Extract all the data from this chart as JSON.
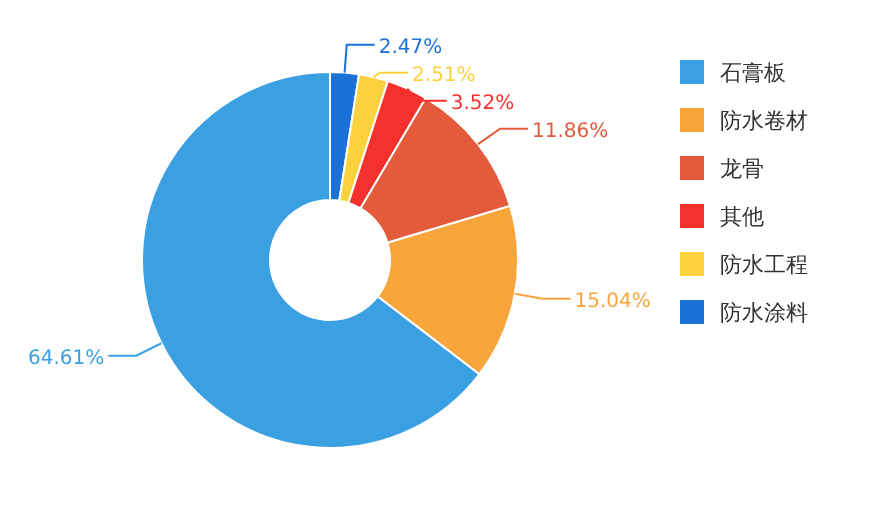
{
  "chart_data": {
    "type": "donut",
    "categories": [
      "石膏板",
      "防水卷材",
      "龙骨",
      "其他",
      "防水工程",
      "防水涂料"
    ],
    "values": [
      64.61,
      15.04,
      11.86,
      3.52,
      2.51,
      2.47
    ],
    "colors": [
      "#3aa0e2",
      "#f8a53c",
      "#e35b3b",
      "#f4312c",
      "#fbd23d",
      "#1a72d9"
    ],
    "value_labels": [
      "64.61%",
      "15.04%",
      "11.86%",
      "3.52%",
      "2.51%",
      "2.47%"
    ],
    "legend": "right"
  }
}
